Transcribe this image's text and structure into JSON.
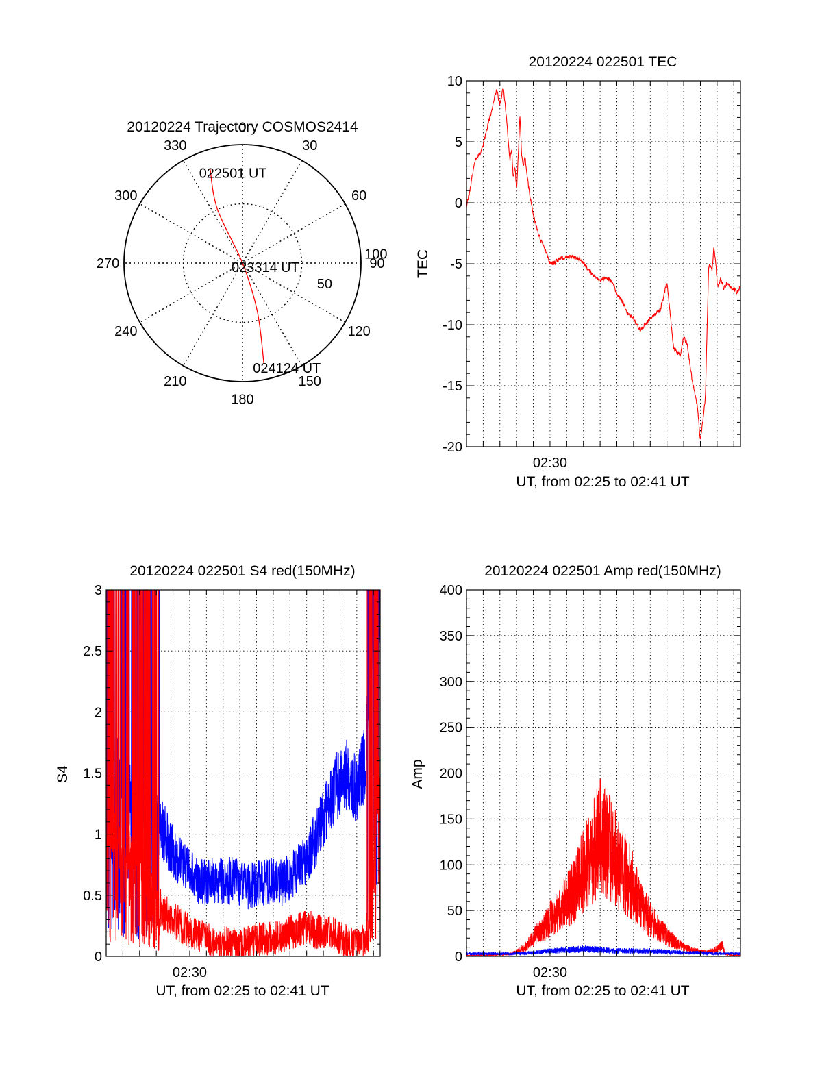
{
  "colors": {
    "red": "#ff0000",
    "blue": "#0000ff",
    "axis": "#000000"
  },
  "chart_data": [
    {
      "id": "polar",
      "type": "polar",
      "title": "20120224 Trajectory COSMOS2414",
      "azimuth_labels": [
        "0",
        "30",
        "60",
        "90",
        "120",
        "150",
        "180",
        "210",
        "240",
        "270",
        "300",
        "330"
      ],
      "radial_labels": [
        "50",
        "100"
      ],
      "radial_max": 100,
      "trajectory": {
        "color": "red",
        "points": [
          [
            341,
            84
          ],
          [
            335,
            50
          ],
          [
            0,
            0
          ],
          [
            163,
            43
          ],
          [
            168,
            87
          ]
        ]
      },
      "annotations": [
        {
          "text": "022501 UT",
          "az": 341,
          "r": 84
        },
        {
          "text": "023314 UT",
          "az": 0,
          "r": 0
        },
        {
          "text": "024124 UT",
          "az": 168,
          "r": 87
        }
      ]
    },
    {
      "id": "tec",
      "type": "line",
      "title": "20120224 022501 TEC",
      "xlabel": "UT, from 02:25 to 02:41 UT",
      "ylabel": "TEC",
      "xlim": [
        0,
        16.4
      ],
      "ylim": [
        -20,
        10
      ],
      "x_ticks": [
        {
          "value": 5,
          "label": "02:30"
        }
      ],
      "y_ticks": [
        -20,
        -15,
        -10,
        -5,
        0,
        5,
        10
      ],
      "series": [
        {
          "color": "red",
          "x": [
            0,
            0.2,
            0.5,
            0.8,
            1.0,
            1.3,
            1.5,
            1.7,
            1.8,
            2.0,
            2.2,
            2.4,
            2.5,
            2.6,
            2.7,
            2.8,
            2.9,
            3.0,
            3.1,
            3.2,
            3.3,
            3.4,
            3.5,
            3.6,
            3.7,
            3.8,
            4.0,
            4.2,
            4.4,
            4.6,
            4.8,
            5.0,
            5.3,
            5.6,
            6.0,
            6.4,
            6.8,
            7.2,
            7.6,
            8.0,
            8.3,
            8.6,
            8.8,
            9.0,
            9.3,
            9.6,
            10.0,
            10.4,
            10.8,
            11.2,
            11.6,
            12.0,
            12.4,
            12.8,
            13.0,
            13.2,
            13.5,
            13.8,
            14.0,
            14.3,
            14.5,
            14.7,
            14.8,
            14.9,
            15.0,
            15.1,
            15.2,
            15.3,
            15.4,
            15.5,
            15.6,
            15.7,
            15.8,
            15.9,
            16.0,
            16.1,
            16.2,
            16.3,
            16.4
          ],
          "y": [
            -0.2,
            1.0,
            3.5,
            4.0,
            4.8,
            6.5,
            7.5,
            8.8,
            9.3,
            8.0,
            9.5,
            7.0,
            5.0,
            3.5,
            4.5,
            2.0,
            3.0,
            1.0,
            4.0,
            7.3,
            4.0,
            3.0,
            3.8,
            2.5,
            1.5,
            0.5,
            -1.0,
            -2.0,
            -3.0,
            -3.5,
            -4.2,
            -5.0,
            -4.9,
            -4.5,
            -4.5,
            -4.4,
            -4.6,
            -5.3,
            -6.0,
            -6.3,
            -6.2,
            -6.3,
            -6.7,
            -7.5,
            -8.0,
            -9.0,
            -9.5,
            -10.5,
            -9.8,
            -9.2,
            -8.8,
            -6.5,
            -12.0,
            -12.5,
            -11.0,
            -11.5,
            -14.5,
            -16.5,
            -19.5,
            -16.0,
            -5.0,
            -5.5,
            -3.8,
            -4.5,
            -6.5,
            -6.8,
            -6.2,
            -6.5,
            -7.0,
            -6.8,
            -6.6,
            -6.7,
            -6.9,
            -7.0,
            -7.1,
            -7.2,
            -7.4,
            -7.2,
            -6.8
          ]
        }
      ]
    },
    {
      "id": "s4",
      "type": "line",
      "title": "20120224 022501 S4 red(150MHz)",
      "xlabel": "UT, from 02:25 to 02:41 UT",
      "ylabel": "S4",
      "xlim": [
        0,
        16.4
      ],
      "ylim": [
        0,
        3
      ],
      "x_ticks": [
        {
          "value": 5,
          "label": "02:30"
        }
      ],
      "y_ticks": [
        0,
        0.5,
        1,
        1.5,
        2,
        2.5,
        3
      ],
      "y_tick_labels": [
        "0",
        "0.5",
        "1",
        "1.5",
        "2",
        "2.5",
        "3"
      ],
      "series": [
        {
          "color": "blue",
          "x": [
            0,
            0.5,
            1.0,
            1.5,
            2.0,
            2.5,
            3.0,
            3.5,
            4.0,
            4.5,
            5.0,
            5.5,
            6.0,
            6.5,
            7.0,
            7.5,
            8.0,
            8.5,
            9.0,
            9.5,
            10.0,
            10.5,
            11.0,
            11.5,
            12.0,
            12.5,
            13.0,
            13.5,
            14.0,
            14.5,
            15.0,
            15.5,
            16.0,
            16.4
          ],
          "y": [
            1.4,
            1.5,
            1.5,
            1.3,
            1.2,
            1.3,
            1.1,
            1.0,
            0.85,
            0.75,
            0.7,
            0.62,
            0.6,
            0.62,
            0.62,
            0.62,
            0.6,
            0.57,
            0.6,
            0.6,
            0.62,
            0.6,
            0.65,
            0.72,
            0.8,
            0.95,
            1.15,
            1.3,
            1.45,
            1.5,
            1.35,
            1.6,
            2.9,
            2.9
          ]
        },
        {
          "color": "red",
          "x": [
            0,
            0.5,
            1.0,
            1.5,
            2.0,
            2.5,
            3.0,
            3.5,
            4.0,
            4.5,
            5.0,
            5.5,
            6.0,
            6.5,
            7.0,
            7.5,
            8.0,
            8.5,
            9.0,
            9.5,
            10.0,
            10.5,
            11.0,
            11.5,
            12.0,
            12.5,
            13.0,
            13.5,
            14.0,
            14.5,
            15.0,
            15.5,
            16.0,
            16.4
          ],
          "y": [
            0.9,
            1.0,
            0.9,
            0.8,
            0.7,
            0.55,
            0.45,
            0.35,
            0.3,
            0.25,
            0.2,
            0.18,
            0.15,
            0.12,
            0.12,
            0.1,
            0.1,
            0.12,
            0.14,
            0.14,
            0.15,
            0.15,
            0.2,
            0.22,
            0.25,
            0.2,
            0.2,
            0.2,
            0.15,
            0.12,
            0.1,
            0.15,
            0.6,
            1.8
          ]
        }
      ]
    },
    {
      "id": "amp",
      "type": "line",
      "title": "20120224 022501 Amp red(150MHz)",
      "xlabel": "UT, from 02:25 to 02:41 UT",
      "ylabel": "Amp",
      "xlim": [
        0,
        16.4
      ],
      "ylim": [
        0,
        400
      ],
      "x_ticks": [
        {
          "value": 5,
          "label": "02:30"
        }
      ],
      "y_ticks": [
        0,
        50,
        100,
        150,
        200,
        250,
        300,
        350,
        400
      ],
      "series": [
        {
          "color": "red",
          "x": [
            0,
            1.0,
            2.0,
            2.5,
            3.0,
            3.5,
            4.0,
            4.5,
            5.0,
            5.5,
            6.0,
            6.5,
            7.0,
            7.5,
            8.0,
            8.5,
            9.0,
            9.5,
            10.0,
            10.5,
            11.0,
            11.5,
            12.0,
            12.5,
            13.0,
            13.5,
            14.0,
            14.5,
            15.0,
            15.3,
            15.5,
            16.0,
            16.4
          ],
          "y": [
            1,
            1,
            2,
            2,
            5,
            10,
            20,
            30,
            40,
            50,
            60,
            72,
            95,
            110,
            130,
            120,
            105,
            90,
            75,
            55,
            40,
            30,
            22,
            15,
            10,
            7,
            5,
            5,
            8,
            12,
            2,
            1,
            1
          ]
        },
        {
          "color": "blue",
          "x": [
            0,
            2.0,
            3.0,
            4.0,
            5.0,
            6.0,
            7.0,
            8.0,
            9.0,
            10.0,
            11.0,
            12.0,
            13.0,
            14.0,
            15.0,
            16.0,
            16.4
          ],
          "y": [
            3,
            3,
            3,
            4,
            6,
            7,
            8,
            7,
            6,
            6,
            6,
            5,
            4,
            4,
            3,
            3,
            3
          ]
        }
      ]
    }
  ]
}
